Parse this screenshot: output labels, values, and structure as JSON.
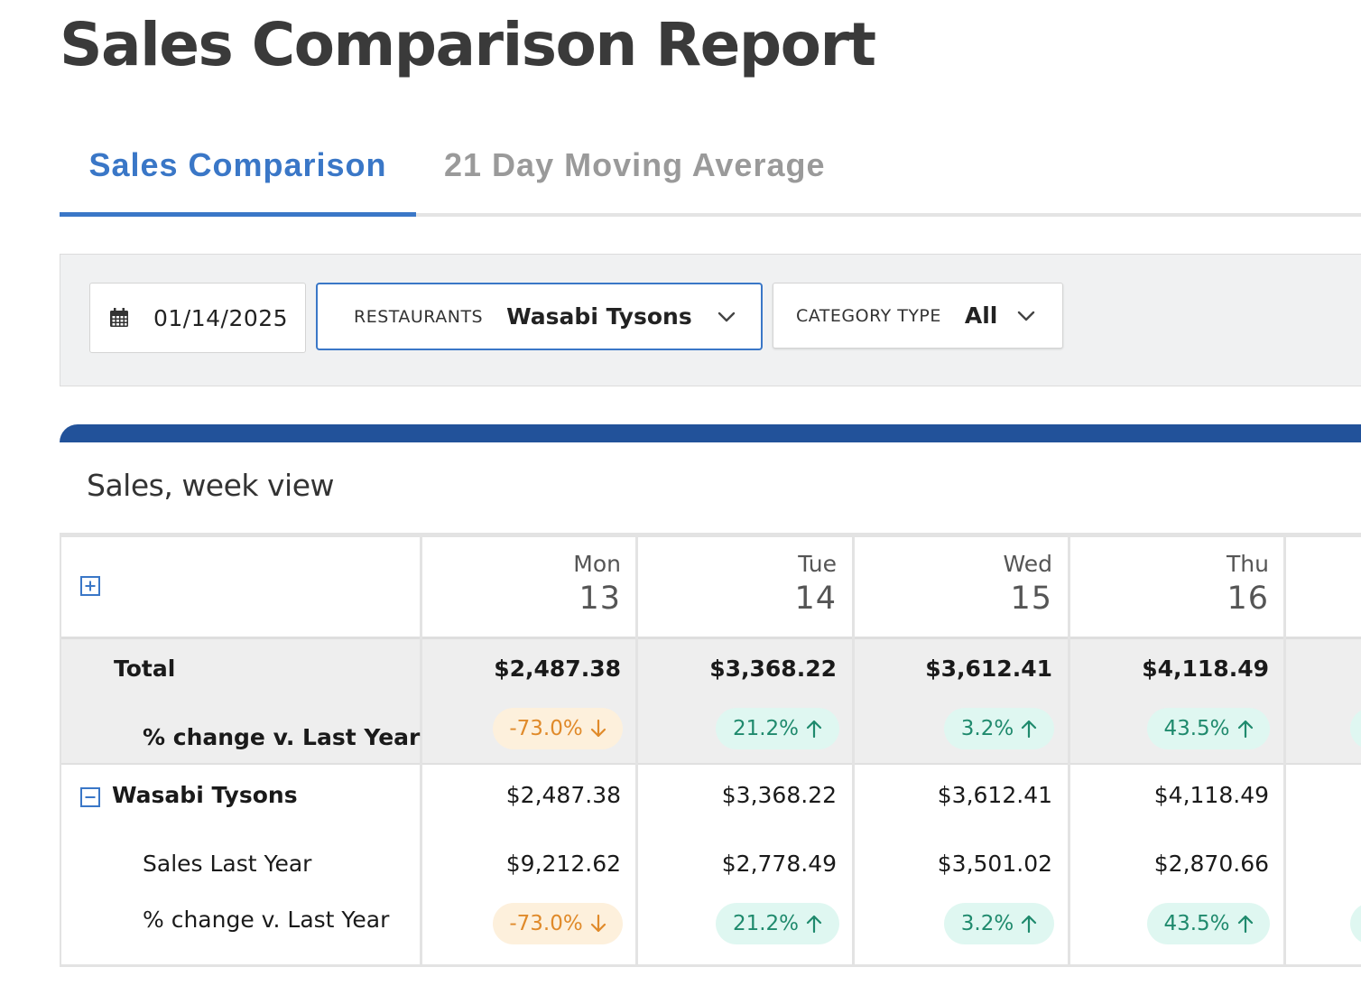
{
  "page": {
    "title": "Sales Comparison Report"
  },
  "tabs": [
    {
      "label": "Sales Comparison",
      "active": true
    },
    {
      "label": "21 Day Moving Average",
      "active": false
    }
  ],
  "filters": {
    "date": "01/14/2025",
    "restaurants_label": "RESTAURANTS",
    "restaurants_value": "Wasabi Tysons",
    "category_label": "CATEGORY TYPE",
    "category_value": "All"
  },
  "section": {
    "title": "Sales, week view"
  },
  "table": {
    "days": [
      {
        "name": "Mon",
        "num": "13"
      },
      {
        "name": "Tue",
        "num": "14"
      },
      {
        "name": "Wed",
        "num": "15"
      },
      {
        "name": "Thu",
        "num": "16"
      }
    ],
    "total": {
      "label": "Total",
      "change_label": "% change v. Last Year",
      "values": [
        "$2,487.38",
        "$3,368.22",
        "$3,612.41",
        "$4,118.49"
      ],
      "changes": [
        {
          "text": "-73.0%",
          "dir": "down"
        },
        {
          "text": "21.2%",
          "dir": "up"
        },
        {
          "text": "3.2%",
          "dir": "up"
        },
        {
          "text": "43.5%",
          "dir": "up"
        }
      ]
    },
    "restaurant": {
      "label": "Wasabi Tysons",
      "values": [
        "$2,487.38",
        "$3,368.22",
        "$3,612.41",
        "$4,118.49"
      ],
      "last_year_label": "Sales Last Year",
      "last_year_values": [
        "$9,212.62",
        "$2,778.49",
        "$3,501.02",
        "$2,870.66"
      ],
      "change_label": "% change v. Last Year",
      "changes": [
        {
          "text": "-73.0%",
          "dir": "down"
        },
        {
          "text": "21.2%",
          "dir": "up"
        },
        {
          "text": "3.2%",
          "dir": "up"
        },
        {
          "text": "43.5%",
          "dir": "up"
        }
      ]
    }
  },
  "colors": {
    "accent": "#3a77c7",
    "band": "#22529a",
    "up_bg": "#dff7f1",
    "up_fg": "#1f8a6d",
    "down_bg": "#fdf0dc",
    "down_fg": "#e08a2a"
  },
  "icons": {
    "date": "calendar-icon",
    "dropdown": "chevron-down-icon",
    "expand_all": "plus-square-icon",
    "collapse_row": "minus-square-icon",
    "change_up": "arrow-up-icon",
    "change_down": "arrow-down-icon"
  }
}
